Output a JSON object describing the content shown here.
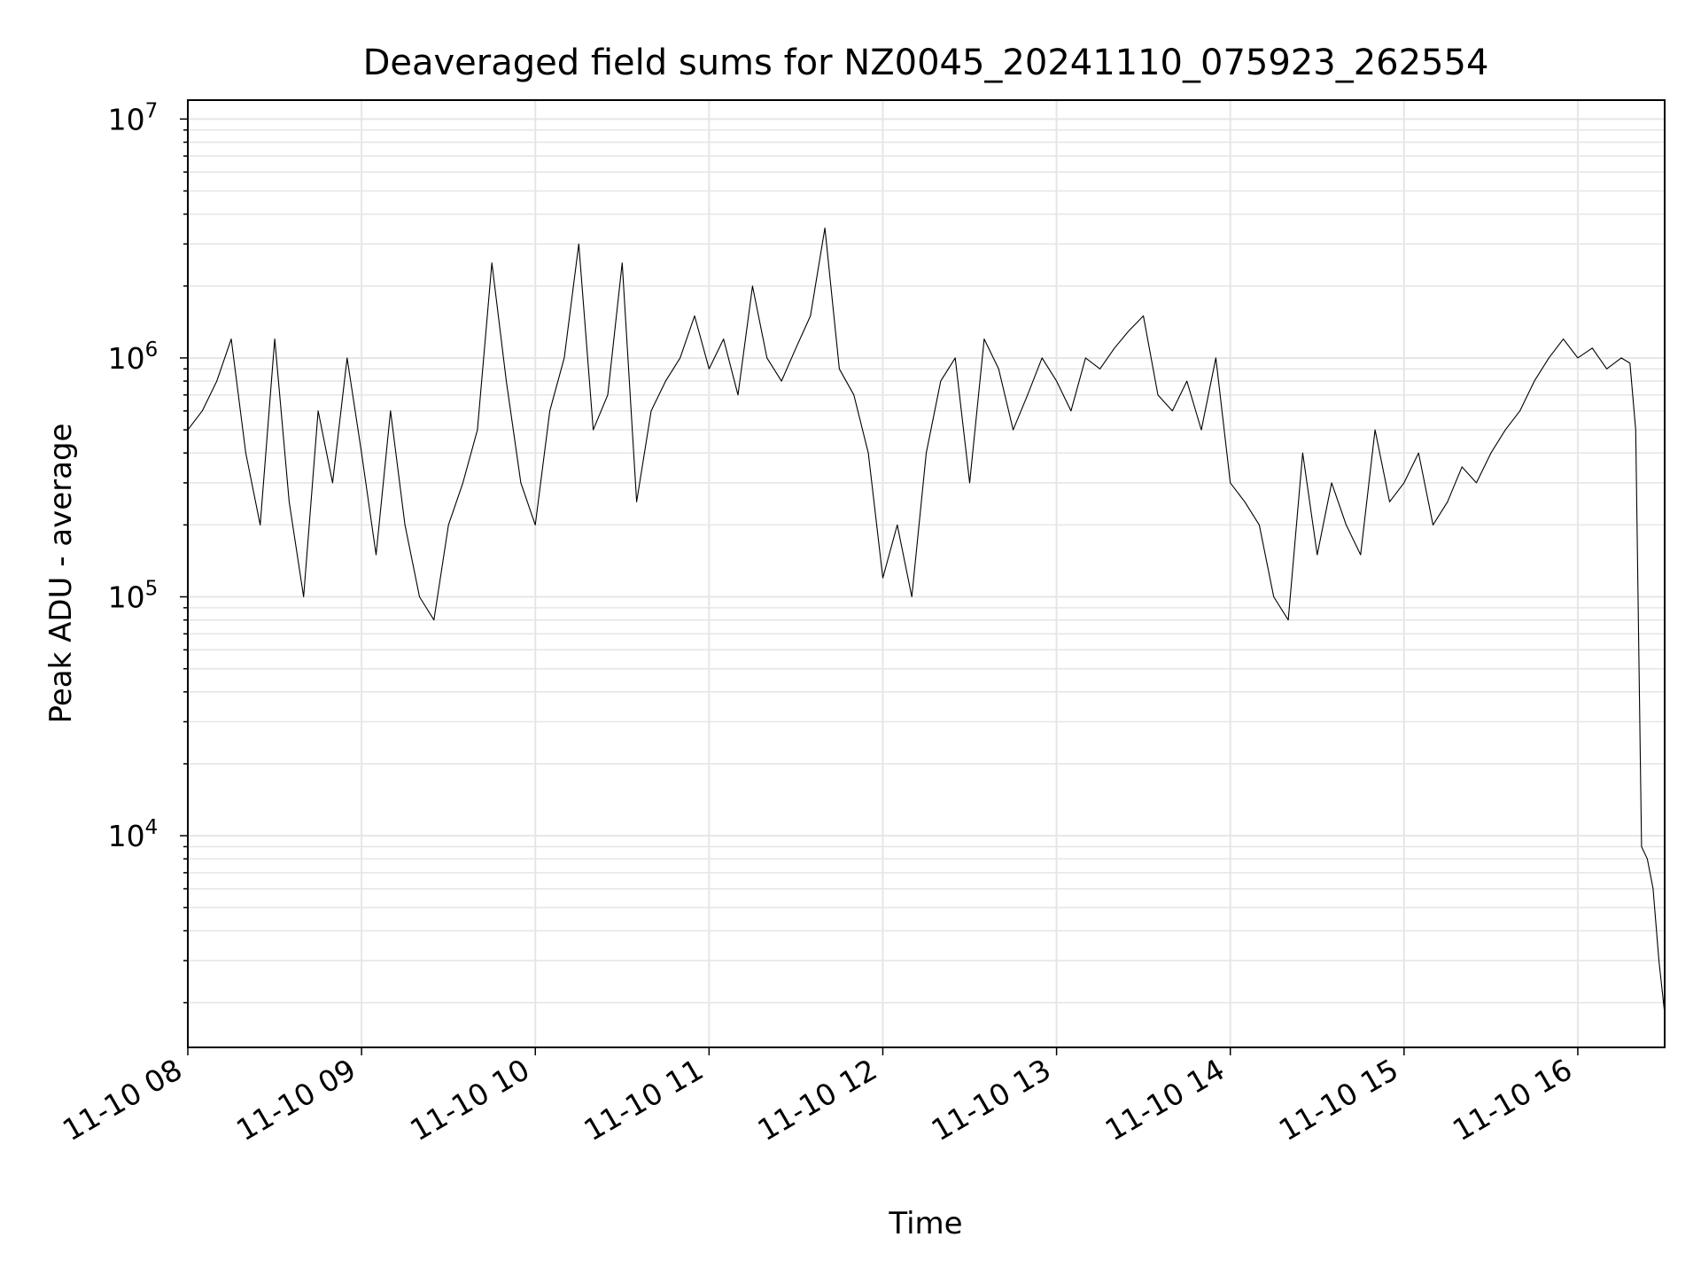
{
  "chart_data": {
    "type": "line",
    "title": "Deaveraged field sums for NZ0045_20241110_075923_262554",
    "xlabel": "Time",
    "ylabel": "Peak ADU - average",
    "yscale": "log",
    "ylim": [
      1300,
      12000000
    ],
    "xlim": [
      "2024-11-10 08:00",
      "2024-11-10 16:30"
    ],
    "grid": true,
    "x_ticks": [
      "11-10 08",
      "11-10 09",
      "11-10 10",
      "11-10 11",
      "11-10 12",
      "11-10 13",
      "11-10 14",
      "11-10 15",
      "11-10 16"
    ],
    "y_tick_base": "10",
    "y_tick_exponents": [
      "4",
      "5",
      "6",
      "7"
    ],
    "line_color": "#000000",
    "series": [
      {
        "x": [
          "2024-11-10 08:00",
          "2024-11-10 08:05",
          "2024-11-10 08:10",
          "2024-11-10 08:15",
          "2024-11-10 08:20",
          "2024-11-10 08:25",
          "2024-11-10 08:30",
          "2024-11-10 08:35",
          "2024-11-10 08:40",
          "2024-11-10 08:45",
          "2024-11-10 08:50",
          "2024-11-10 08:55",
          "2024-11-10 09:00",
          "2024-11-10 09:05",
          "2024-11-10 09:10",
          "2024-11-10 09:15",
          "2024-11-10 09:20",
          "2024-11-10 09:25",
          "2024-11-10 09:30",
          "2024-11-10 09:35",
          "2024-11-10 09:40",
          "2024-11-10 09:45",
          "2024-11-10 09:50",
          "2024-11-10 09:55",
          "2024-11-10 10:00",
          "2024-11-10 10:05",
          "2024-11-10 10:10",
          "2024-11-10 10:15",
          "2024-11-10 10:20",
          "2024-11-10 10:25",
          "2024-11-10 10:30",
          "2024-11-10 10:35",
          "2024-11-10 10:40",
          "2024-11-10 10:45",
          "2024-11-10 10:50",
          "2024-11-10 10:55",
          "2024-11-10 11:00",
          "2024-11-10 11:05",
          "2024-11-10 11:10",
          "2024-11-10 11:15",
          "2024-11-10 11:20",
          "2024-11-10 11:25",
          "2024-11-10 11:30",
          "2024-11-10 11:35",
          "2024-11-10 11:40",
          "2024-11-10 11:45",
          "2024-11-10 11:50",
          "2024-11-10 11:55",
          "2024-11-10 12:00",
          "2024-11-10 12:05",
          "2024-11-10 12:10",
          "2024-11-10 12:15",
          "2024-11-10 12:20",
          "2024-11-10 12:25",
          "2024-11-10 12:30",
          "2024-11-10 12:35",
          "2024-11-10 12:40",
          "2024-11-10 12:45",
          "2024-11-10 12:50",
          "2024-11-10 12:55",
          "2024-11-10 13:00",
          "2024-11-10 13:05",
          "2024-11-10 13:10",
          "2024-11-10 13:15",
          "2024-11-10 13:20",
          "2024-11-10 13:25",
          "2024-11-10 13:30",
          "2024-11-10 13:35",
          "2024-11-10 13:40",
          "2024-11-10 13:45",
          "2024-11-10 13:50",
          "2024-11-10 13:55",
          "2024-11-10 14:00",
          "2024-11-10 14:05",
          "2024-11-10 14:10",
          "2024-11-10 14:15",
          "2024-11-10 14:20",
          "2024-11-10 14:25",
          "2024-11-10 14:30",
          "2024-11-10 14:35",
          "2024-11-10 14:40",
          "2024-11-10 14:45",
          "2024-11-10 14:50",
          "2024-11-10 14:55",
          "2024-11-10 15:00",
          "2024-11-10 15:05",
          "2024-11-10 15:10",
          "2024-11-10 15:15",
          "2024-11-10 15:20",
          "2024-11-10 15:25",
          "2024-11-10 15:30",
          "2024-11-10 15:35",
          "2024-11-10 15:40",
          "2024-11-10 15:45",
          "2024-11-10 15:50",
          "2024-11-10 15:55",
          "2024-11-10 16:00",
          "2024-11-10 16:05",
          "2024-11-10 16:10",
          "2024-11-10 16:15",
          "2024-11-10 16:18",
          "2024-11-10 16:20",
          "2024-11-10 16:22",
          "2024-11-10 16:24",
          "2024-11-10 16:26",
          "2024-11-10 16:28",
          "2024-11-10 16:30"
        ],
        "y": [
          500000,
          600000,
          800000,
          1200000,
          400000,
          200000,
          1200000,
          250000,
          100000,
          600000,
          300000,
          1000000,
          400000,
          150000,
          600000,
          200000,
          100000,
          80000,
          200000,
          300000,
          500000,
          2500000,
          800000,
          300000,
          200000,
          600000,
          1000000,
          3000000,
          500000,
          700000,
          2500000,
          250000,
          600000,
          800000,
          1000000,
          1500000,
          900000,
          1200000,
          700000,
          2000000,
          1000000,
          800000,
          1100000,
          1500000,
          3500000,
          900000,
          700000,
          400000,
          120000,
          200000,
          100000,
          400000,
          800000,
          1000000,
          300000,
          1200000,
          900000,
          500000,
          700000,
          1000000,
          800000,
          600000,
          1000000,
          900000,
          1100000,
          1300000,
          1500000,
          700000,
          600000,
          800000,
          500000,
          1000000,
          300000,
          250000,
          200000,
          100000,
          80000,
          400000,
          150000,
          300000,
          200000,
          150000,
          500000,
          250000,
          300000,
          400000,
          200000,
          250000,
          350000,
          300000,
          400000,
          500000,
          600000,
          800000,
          1000000,
          1200000,
          1000000,
          1100000,
          900000,
          1000000,
          950000,
          500000,
          9000,
          8000,
          6000,
          3000,
          1800
        ]
      }
    ]
  }
}
